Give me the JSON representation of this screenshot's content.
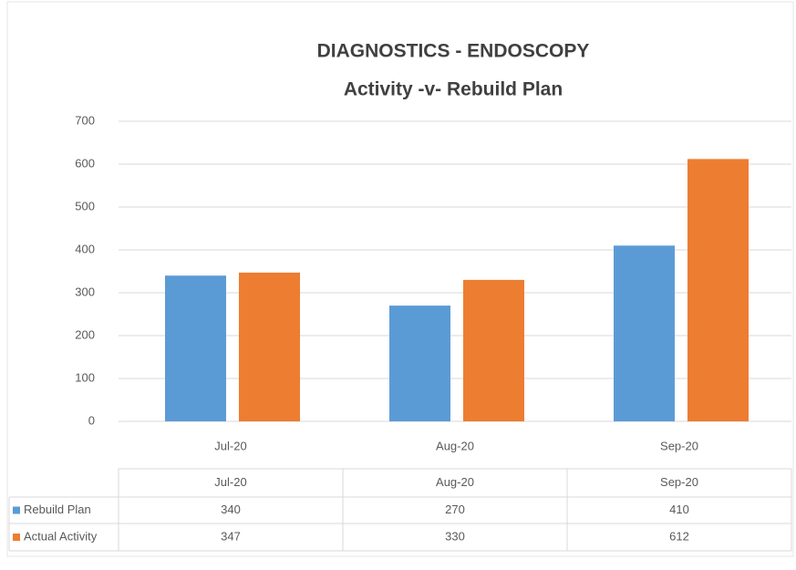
{
  "chart_data": {
    "type": "bar",
    "title": "DIAGNOSTICS - ENDOSCOPY",
    "subtitle": "Activity -v- Rebuild Plan",
    "categories": [
      "Jul-20",
      "Aug-20",
      "Sep-20"
    ],
    "series": [
      {
        "name": "Rebuild Plan",
        "color": "#5b9bd5",
        "values": [
          340,
          270,
          410
        ]
      },
      {
        "name": "Actual Activity",
        "color": "#ed7d31",
        "values": [
          347,
          330,
          612
        ]
      }
    ],
    "ylim": [
      0,
      700
    ],
    "yticks": [
      0,
      100,
      200,
      300,
      400,
      500,
      600,
      700
    ],
    "grid": true,
    "data_table": true
  }
}
